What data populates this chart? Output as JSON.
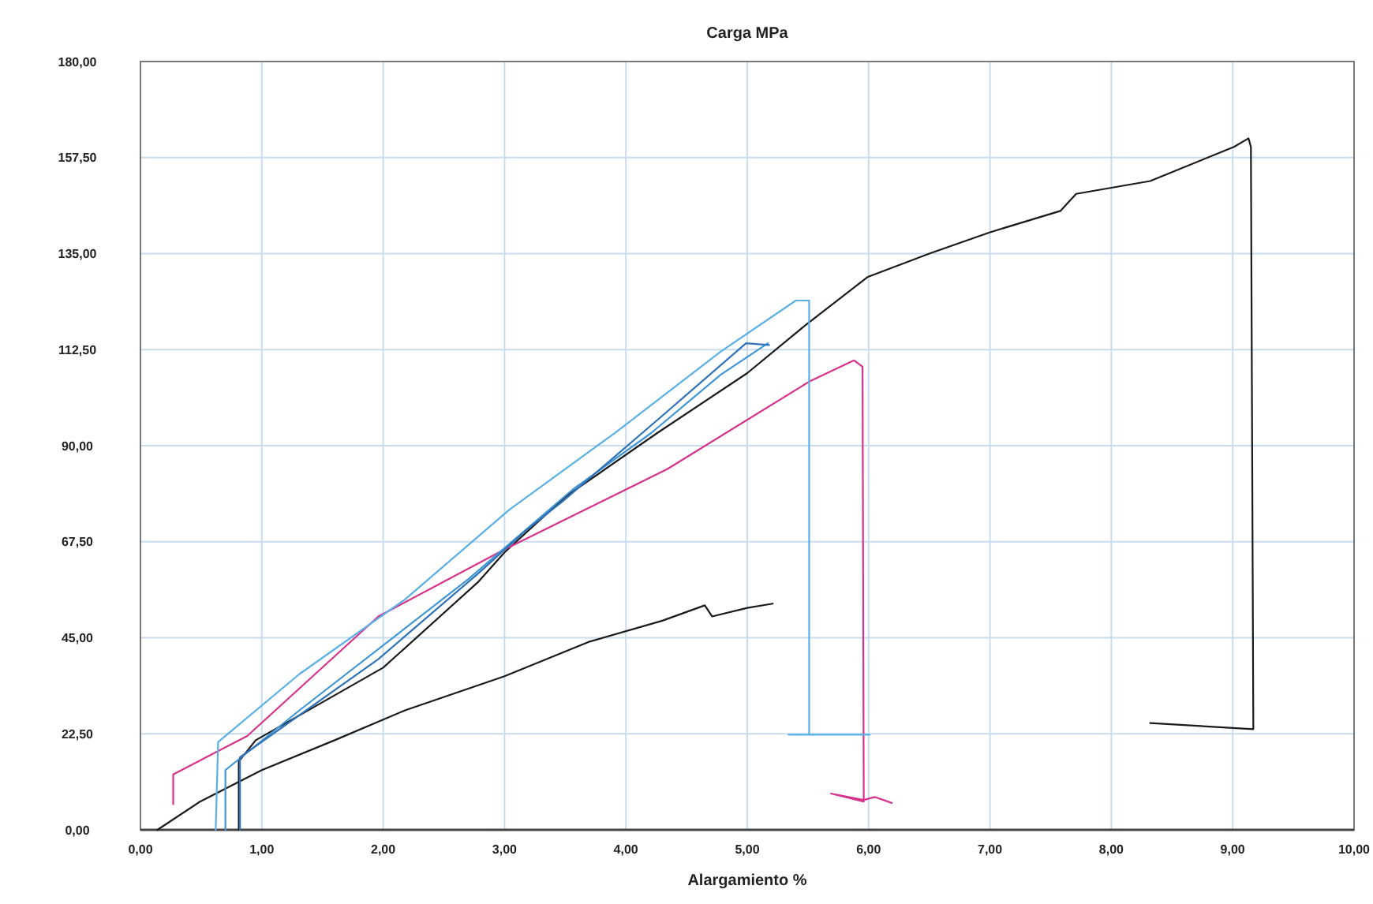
{
  "chart_data": {
    "type": "line",
    "title": "Carga  MPa",
    "xlabel": "Alargamiento  %",
    "xlim": [
      0,
      10
    ],
    "ylim": [
      0,
      180
    ],
    "grid": true,
    "marker": "none",
    "line_style": "solid",
    "xticks": [
      {
        "value": 0,
        "label": "0,00"
      },
      {
        "value": 1,
        "label": "1,00"
      },
      {
        "value": 2,
        "label": "2,00"
      },
      {
        "value": 3,
        "label": "3,00"
      },
      {
        "value": 4,
        "label": "4,00"
      },
      {
        "value": 5,
        "label": "5,00"
      },
      {
        "value": 6,
        "label": "6,00"
      },
      {
        "value": 7,
        "label": "7,00"
      },
      {
        "value": 8,
        "label": "8,00"
      },
      {
        "value": 9,
        "label": "9,00"
      },
      {
        "value": 10,
        "label": "10,00"
      }
    ],
    "yticks": [
      {
        "value": 0,
        "label": "0,00"
      },
      {
        "value": 22.5,
        "label": "22,50"
      },
      {
        "value": 45,
        "label": "45,00"
      },
      {
        "value": 67.5,
        "label": "67,50"
      },
      {
        "value": 90,
        "label": "90,00"
      },
      {
        "value": 112.5,
        "label": "112,50"
      },
      {
        "value": 135,
        "label": "135,00"
      },
      {
        "value": 157.5,
        "label": "157,50"
      },
      {
        "value": 180,
        "label": "180,00"
      }
    ],
    "series": [
      {
        "color": "#1a1a1a",
        "x": [
          0.14,
          0.49,
          1.0,
          1.6,
          2.18,
          3.0,
          3.69,
          4.3,
          4.65,
          4.71,
          5.0,
          5.21
        ],
        "values": [
          0,
          6.6,
          14,
          21,
          28,
          36,
          44,
          49,
          52.6,
          50,
          52,
          53
        ]
      },
      {
        "color": "#1a1a1a",
        "x": [
          0.81,
          0.81,
          0.95,
          2.0,
          2.78,
          3.0,
          3.5,
          4.26,
          5.0,
          5.47,
          5.99,
          6.5,
          7.0,
          7.58,
          7.71,
          8.32,
          9.01,
          9.13,
          9.15,
          9.17,
          8.32
        ],
        "values": [
          0,
          16,
          21,
          38,
          58,
          65,
          78,
          93,
          107,
          118,
          129.5,
          135,
          140,
          145,
          149,
          152,
          160,
          162,
          160,
          23.6,
          25
        ]
      },
      {
        "color": "#d6338a",
        "x": [
          0.27,
          0.27,
          0.88,
          1.96,
          3.0,
          4.34,
          5.51,
          5.88,
          5.95,
          5.96,
          5.69,
          5.96,
          6.05,
          6.19
        ],
        "values": [
          6,
          13,
          22,
          50,
          65.7,
          84.5,
          105,
          110,
          108.5,
          6.6,
          8.5,
          7,
          7.7,
          6.3
        ]
      },
      {
        "color": "#5ab0e6",
        "x": [
          0.62,
          0.64,
          1.31,
          2.18,
          3.04,
          3.91,
          4.78,
          5.4,
          5.51,
          5.51,
          5.34,
          6.01
        ],
        "values": [
          0,
          20.6,
          36.5,
          54,
          75,
          93,
          112,
          124,
          124,
          22.3,
          22.3,
          22.3
        ]
      },
      {
        "color": "#3f96d6",
        "x": [
          0.7,
          0.7,
          1.31,
          2.7,
          3.56,
          4.21,
          4.78,
          5.17
        ],
        "values": [
          0,
          14,
          28,
          58.7,
          79.7,
          93,
          106.6,
          114
        ]
      },
      {
        "color": "#2f72b8",
        "x": [
          0.82,
          0.82,
          1.96,
          2.78,
          3.17,
          3.48,
          4.34,
          4.99,
          5.18
        ],
        "values": [
          0,
          17,
          40,
          60,
          70,
          77,
          98,
          114,
          113.6
        ]
      }
    ]
  }
}
